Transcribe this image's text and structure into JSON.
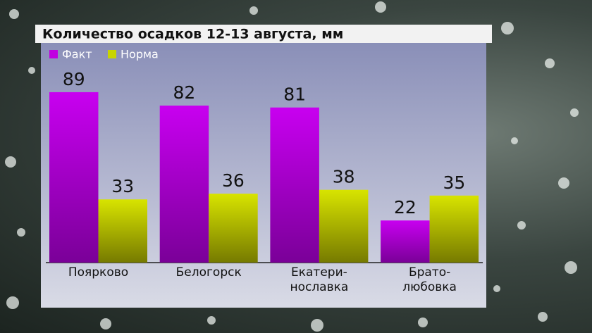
{
  "chart_data": {
    "type": "bar",
    "title": "Количество осадков 12-13 августа, мм",
    "categories": [
      "Поярково",
      "Белогорск",
      "Екатери-\nнославка",
      "Брато-\nлюбовка"
    ],
    "series": [
      {
        "name": "Факт",
        "color": "#c000e0",
        "values": [
          89,
          82,
          81,
          22
        ]
      },
      {
        "name": "Норма",
        "color": "#c8d400",
        "values": [
          33,
          36,
          38,
          35
        ]
      }
    ]
  }
}
